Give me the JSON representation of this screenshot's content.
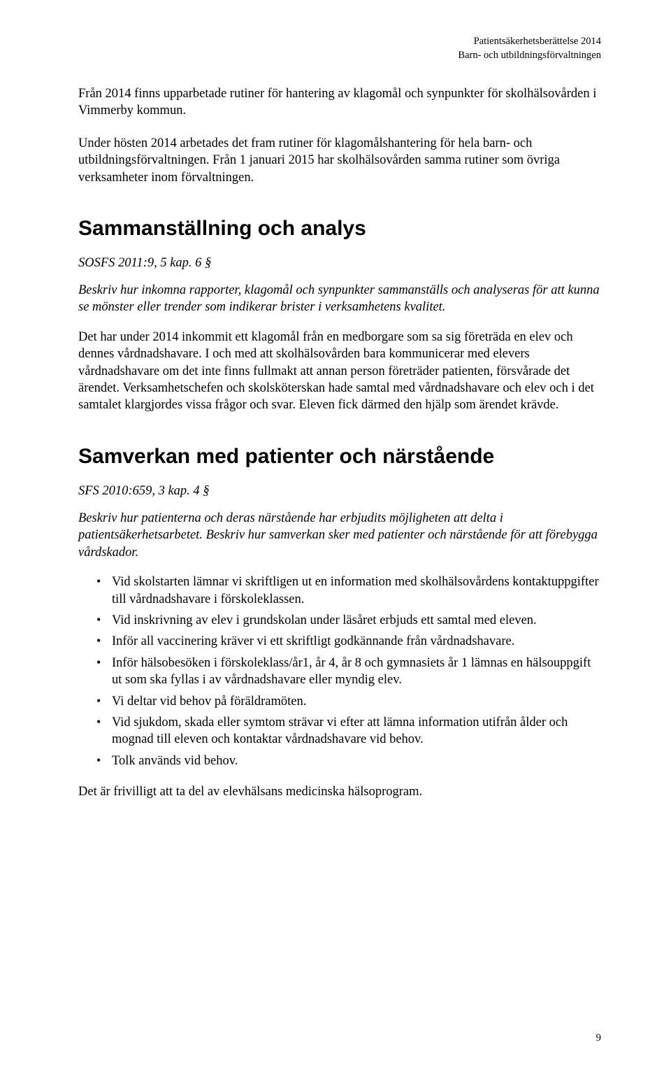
{
  "header": {
    "line1": "Patientsäkerhetsberättelse 2014",
    "line2": "Barn- och utbildningsförvaltningen"
  },
  "paragraphs": {
    "p1": "Från 2014 finns upparbetade rutiner för hantering av klagomål och synpunkter för skolhälsovården i Vimmerby kommun.",
    "p2": "Under hösten 2014 arbetades det fram rutiner för klagomålshantering för hela barn- och utbildningsförvaltningen. Från 1 januari 2015 har skolhälsovården samma rutiner som övriga verksamheter inom förvaltningen."
  },
  "section1": {
    "heading": "Sammanställning och analys",
    "ref": "SOSFS 2011:9, 5 kap. 6 §",
    "desc": "Beskriv hur inkomna rapporter, klagomål och synpunkter sammanställs och analyseras för att kunna se mönster eller trender som indikerar brister i verksamhetens kvalitet.",
    "body": "Det har under 2014 inkommit ett klagomål från en medborgare som sa sig företräda en elev och dennes vårdnadshavare. I och med att skolhälsovården bara kommunicerar med elevers vårdnadshavare om det inte finns fullmakt att annan person företräder patienten, försvårade det ärendet. Verksamhetschefen och skolsköterskan hade samtal med vårdnadshavare och elev och i det samtalet klargjordes vissa frågor och svar. Eleven fick därmed den hjälp som ärendet krävde."
  },
  "section2": {
    "heading": "Samverkan med patienter och närstående",
    "ref": "SFS 2010:659, 3 kap. 4 §",
    "desc": "Beskriv hur patienterna och deras närstående har erbjudits möjligheten att delta i patientsäkerhetsarbetet. Beskriv hur samverkan sker med patienter och närstående för att förebygga vårdskador.",
    "bullets": [
      "Vid skolstarten lämnar vi skriftligen ut en information med skolhälsovårdens kontaktuppgifter till vårdnadshavare i förskoleklassen.",
      "Vid inskrivning av elev i grundskolan under läsåret erbjuds ett samtal med eleven.",
      "Inför all vaccinering kräver vi ett skriftligt godkännande från vårdnadshavare.",
      "Inför hälsobesöken i förskoleklass/år1, år 4, år 8 och gymnasiets år 1 lämnas en hälsouppgift ut som ska fyllas i av vårdnadshavare eller myndig elev.",
      "Vi deltar vid behov på föräldramöten.",
      "Vid sjukdom, skada eller symtom strävar vi efter att lämna information utifrån ålder och mognad till eleven och kontaktar vårdnadshavare vid behov.",
      "Tolk används vid behov."
    ],
    "closing": "Det är frivilligt att ta del av elevhälsans medicinska hälsoprogram."
  },
  "pageNumber": "9"
}
